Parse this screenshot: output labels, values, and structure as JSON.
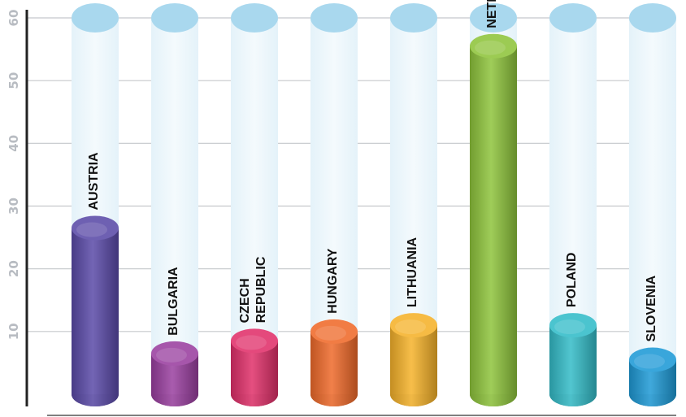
{
  "chart_data": {
    "type": "bar",
    "title": "",
    "xlabel": "",
    "ylabel": "",
    "ylim": [
      0,
      60
    ],
    "yticks": [
      10,
      20,
      30,
      40,
      50,
      60
    ],
    "grid": true,
    "categories": [
      {
        "lines": [
          "AUSTRIA"
        ],
        "color": "#5a4aa8"
      },
      {
        "lines": [
          "BULGARIA"
        ],
        "color": "#9a3fa0"
      },
      {
        "lines": [
          "CZECH",
          "REPUBLIC"
        ],
        "color": "#e0306a"
      },
      {
        "lines": [
          "HUNGARY"
        ],
        "color": "#ef6a2a"
      },
      {
        "lines": [
          "LITHUANIA"
        ],
        "color": "#f5b22a"
      },
      {
        "lines": [
          "NETHERLANDS"
        ],
        "color": "#8ec43c"
      },
      {
        "lines": [
          "POLAND"
        ],
        "color": "#33bcc8"
      },
      {
        "lines": [
          "SLOVENIA"
        ],
        "color": "#1e9ad6"
      }
    ],
    "values": [
      26.5,
      6.5,
      8.5,
      10,
      11,
      55.5,
      11,
      5.5
    ]
  }
}
